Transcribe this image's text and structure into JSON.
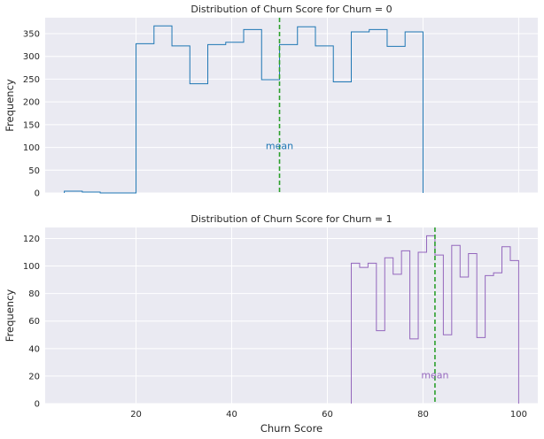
{
  "chart_data": [
    {
      "type": "histogram",
      "title": "Distribution of Churn Score for Churn = 0",
      "xlabel": "",
      "ylabel": "Frequency",
      "xlim": [
        1,
        104
      ],
      "ylim": [
        0,
        385
      ],
      "yticks": [
        0,
        50,
        100,
        150,
        200,
        250,
        300,
        350
      ],
      "xticks": [
        20,
        40,
        60,
        80,
        100
      ],
      "show_xtick_labels": false,
      "grid": true,
      "color": "#1f77b4",
      "bin_edges": [
        5,
        8.75,
        12.5,
        16.25,
        20,
        23.75,
        27.5,
        31.25,
        35,
        38.75,
        42.5,
        46.25,
        50,
        53.75,
        57.5,
        61.25,
        65,
        68.75,
        72.5,
        76.25,
        80
      ],
      "counts": [
        4,
        2,
        0,
        0,
        328,
        367,
        323,
        240,
        326,
        331,
        359,
        249,
        326,
        365,
        323,
        244,
        354,
        359,
        322,
        354
      ],
      "mean": 50,
      "mean_color": "#2ca02c",
      "annotation": "mean",
      "annotation_y": 104
    },
    {
      "type": "histogram",
      "title": "Distribution of Churn Score for Churn = 1",
      "xlabel": "Churn Score",
      "ylabel": "Frequency",
      "xlim": [
        1,
        104
      ],
      "ylim": [
        0,
        128
      ],
      "yticks": [
        0,
        20,
        40,
        60,
        80,
        100,
        120
      ],
      "xticks": [
        20,
        40,
        60,
        80,
        100
      ],
      "show_xtick_labels": true,
      "grid": true,
      "color": "#9467bd",
      "bin_edges": [
        65,
        66.75,
        68.5,
        70.25,
        72,
        73.75,
        75.5,
        77.25,
        79,
        80.75,
        82.5,
        84.25,
        86,
        87.75,
        89.5,
        91.25,
        93,
        94.75,
        96.5,
        98.25,
        100
      ],
      "counts": [
        102,
        99,
        102,
        53,
        106,
        94,
        111,
        47,
        110,
        122,
        108,
        50,
        115,
        92,
        109,
        48,
        93,
        95,
        114,
        104
      ],
      "mean": 82.5,
      "mean_color": "#2ca02c",
      "annotation": "mean",
      "annotation_y": 21
    }
  ]
}
